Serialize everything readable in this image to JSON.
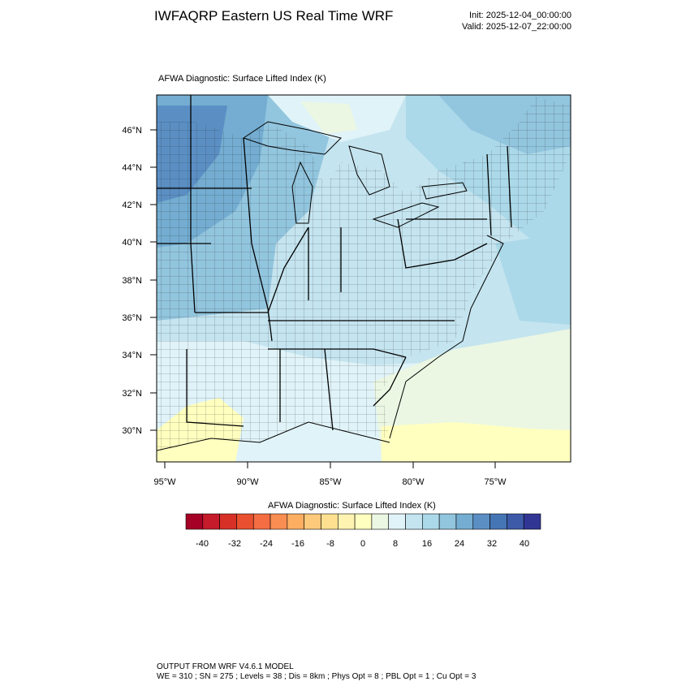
{
  "header": {
    "title": "IWFAQRP Eastern US Real Time WRF",
    "init": "Init: 2025-12-04_00:00:00",
    "valid": "Valid: 2025-12-07_22:00:00"
  },
  "plot": {
    "subtitle": "AFWA Diagnostic: Surface Lifted Index   (K)",
    "lat_labels": [
      "46°N",
      "44°N",
      "42°N",
      "40°N",
      "38°N",
      "36°N",
      "34°N",
      "32°N",
      "30°N"
    ],
    "lon_labels": [
      "95°W",
      "90°W",
      "85°W",
      "80°W",
      "75°W"
    ]
  },
  "colorbar": {
    "title": "AFWA Diagnostic: Surface Lifted Index  (K)",
    "tick_labels": [
      "-40",
      "-32",
      "-24",
      "-16",
      "-8",
      "0",
      "8",
      "16",
      "24",
      "32",
      "40"
    ],
    "colors": [
      "#a50026",
      "#c51b2a",
      "#d73027",
      "#e8502f",
      "#f46d43",
      "#f88e52",
      "#fdae61",
      "#fdc97a",
      "#fee090",
      "#fef3b0",
      "#ffffbf",
      "#ebf7e3",
      "#e0f3f8",
      "#c4e4ef",
      "#abd9e9",
      "#92c5de",
      "#74add1",
      "#5b8fc4",
      "#4575b4",
      "#3d5aa8",
      "#313695"
    ]
  },
  "footer": {
    "line1": "OUTPUT FROM WRF V4.6.1 MODEL",
    "line2": "WE = 310 ; SN = 275 ; Levels = 38 ; Dis = 8km ; Phys Opt = 8 ; PBL Opt = 1 ; Cu Opt = 3"
  }
}
